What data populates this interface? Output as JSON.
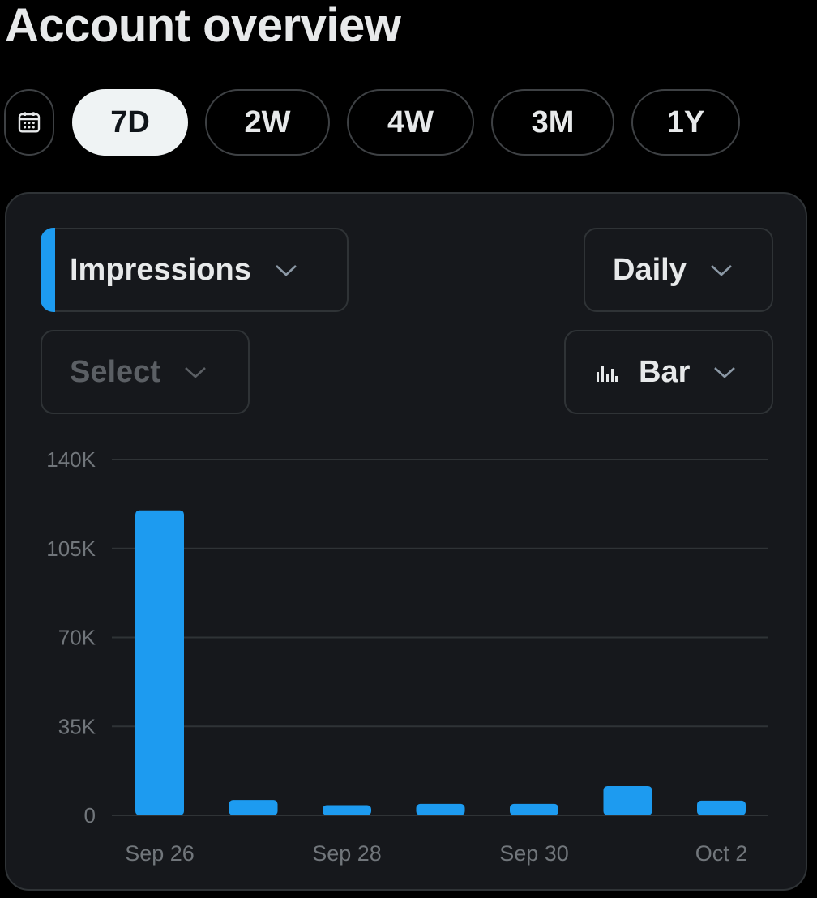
{
  "page": {
    "title": "Account overview"
  },
  "ranges": {
    "calendar_icon": "calendar-icon",
    "options": [
      "7D",
      "2W",
      "4W",
      "3M",
      "1Y"
    ],
    "selected": "7D"
  },
  "controls": {
    "metric": "Impressions",
    "compare_placeholder": "Select",
    "granularity": "Daily",
    "chart_type": "Bar",
    "chart_type_icon": "bar-chart-icon",
    "accent_color": "#1d9bf0"
  },
  "chart_data": {
    "type": "bar",
    "categories": [
      "Sep 26",
      "Sep 27",
      "Sep 28",
      "Sep 29",
      "Sep 30",
      "Oct 1",
      "Oct 2"
    ],
    "series": [
      {
        "name": "Impressions",
        "color": "#1d9bf0",
        "values": [
          120000,
          6000,
          4000,
          4500,
          4500,
          11500,
          5800
        ]
      }
    ],
    "x_tick_labels": [
      "Sep 26",
      "Sep 28",
      "Sep 30",
      "Oct 2"
    ],
    "y_tick_labels": [
      "0",
      "35K",
      "70K",
      "105K",
      "140K"
    ],
    "y_ticks": [
      0,
      35000,
      70000,
      105000,
      140000
    ],
    "ylim": [
      0,
      140000
    ],
    "grid": true,
    "legend": "none"
  }
}
